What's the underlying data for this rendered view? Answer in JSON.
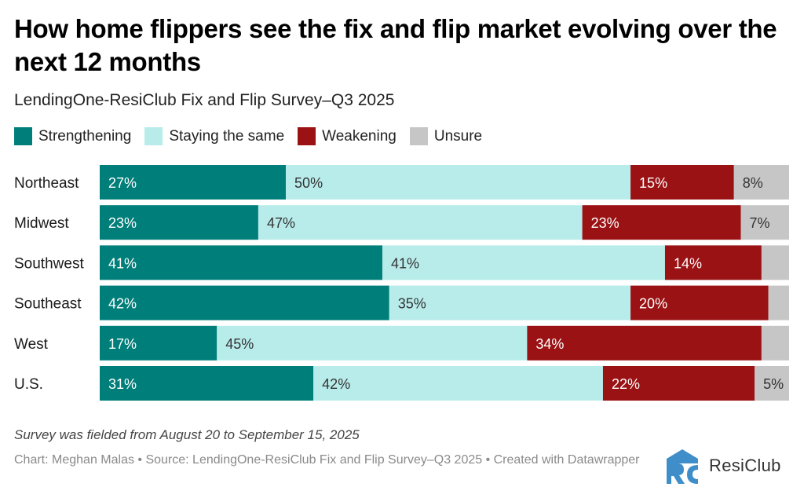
{
  "header": {
    "title": "How home flippers see the fix and flip market evolving over the next 12 months",
    "subtitle": "LendingOne-ResiClub Fix and Flip Survey–Q3 2025"
  },
  "legend": [
    {
      "label": "Strengthening",
      "color": "#007f7a"
    },
    {
      "label": "Staying the same",
      "color": "#b8ecea"
    },
    {
      "label": "Weakening",
      "color": "#9b1214"
    },
    {
      "label": "Unsure",
      "color": "#c6c6c6"
    }
  ],
  "chart_data": {
    "type": "bar",
    "orientation": "horizontal",
    "stacked": true,
    "title": "How home flippers see the fix and flip market evolving over the next 12 months",
    "subtitle": "LendingOne-ResiClub Fix and Flip Survey–Q3 2025",
    "xlabel": "",
    "ylabel": "",
    "xlim": [
      0,
      100
    ],
    "unit": "%",
    "grid": false,
    "legend_position": "top-left",
    "categories": [
      "Northeast",
      "Midwest",
      "Southwest",
      "Southeast",
      "West",
      "U.S."
    ],
    "series": [
      {
        "name": "Strengthening",
        "color": "#007f7a",
        "label_color": "#ffffff",
        "values": [
          27,
          23,
          41,
          42,
          17,
          31
        ],
        "labels_shown": [
          true,
          true,
          true,
          true,
          true,
          true
        ]
      },
      {
        "name": "Staying the same",
        "color": "#b8ecea",
        "label_color": "#333333",
        "values": [
          50,
          47,
          41,
          35,
          45,
          42
        ],
        "labels_shown": [
          true,
          true,
          true,
          true,
          true,
          true
        ]
      },
      {
        "name": "Weakening",
        "color": "#9b1214",
        "label_color": "#ffffff",
        "values": [
          15,
          23,
          14,
          20,
          34,
          22
        ],
        "labels_shown": [
          true,
          true,
          true,
          true,
          true,
          true
        ]
      },
      {
        "name": "Unsure",
        "color": "#c6c6c6",
        "label_color": "#333333",
        "values": [
          8,
          7,
          4,
          3,
          4,
          5
        ],
        "labels_shown": [
          true,
          true,
          false,
          false,
          false,
          true
        ]
      }
    ]
  },
  "footer": {
    "note": "Survey was fielded from August 20 to September 15, 2025",
    "credits": "Chart: Meghan Malas • Source: LendingOne-ResiClub Fix and Flip Survey–Q3 2025 • Created with Datawrapper",
    "logo_text": "ResiClub",
    "logo_color": "#3f8ec9"
  }
}
